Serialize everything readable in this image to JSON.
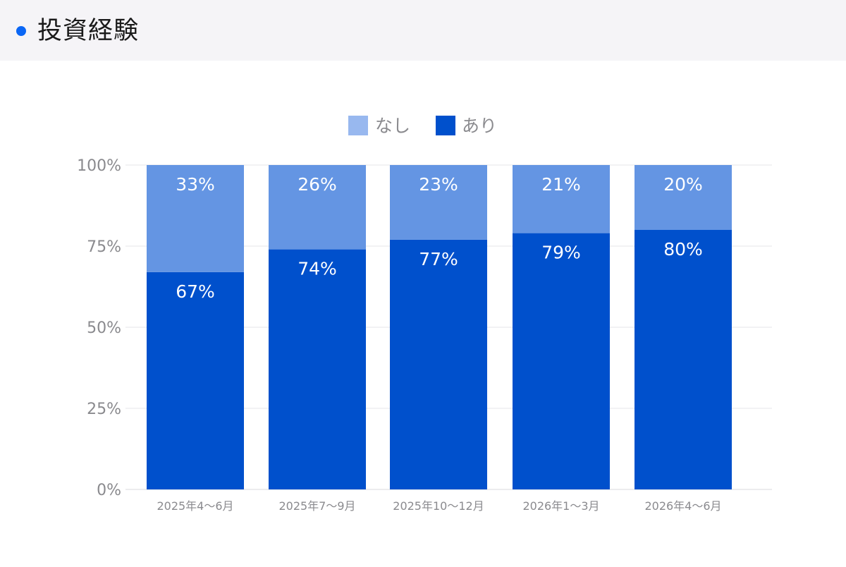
{
  "header": {
    "title": "投資経験"
  },
  "colors": {
    "accent": "#0a66f5",
    "bar_ari": "#0050cc",
    "bar_nashi": "#6495e3",
    "legend_nashi": "#98b8ef",
    "legend_ari": "#0050cc"
  },
  "chart_data": {
    "type": "bar",
    "stacked": true,
    "categories": [
      "2025年4〜6月",
      "2025年7〜9月",
      "2025年10〜12月",
      "2026年1〜3月",
      "2026年4〜6月"
    ],
    "series": [
      {
        "name": "あり",
        "values": [
          67,
          74,
          77,
          79,
          80
        ],
        "labels": [
          "67%",
          "74%",
          "77%",
          "79%",
          "80%"
        ]
      },
      {
        "name": "なし",
        "values": [
          33,
          26,
          23,
          21,
          20
        ],
        "labels": [
          "33%",
          "26%",
          "23%",
          "21%",
          "20%"
        ]
      }
    ],
    "legend": {
      "position": "top-center",
      "entries": [
        "なし",
        "あり"
      ]
    },
    "ylim": [
      0,
      100
    ],
    "yticks": [
      "0%",
      "25%",
      "50%",
      "75%",
      "100%"
    ],
    "grid": true
  }
}
